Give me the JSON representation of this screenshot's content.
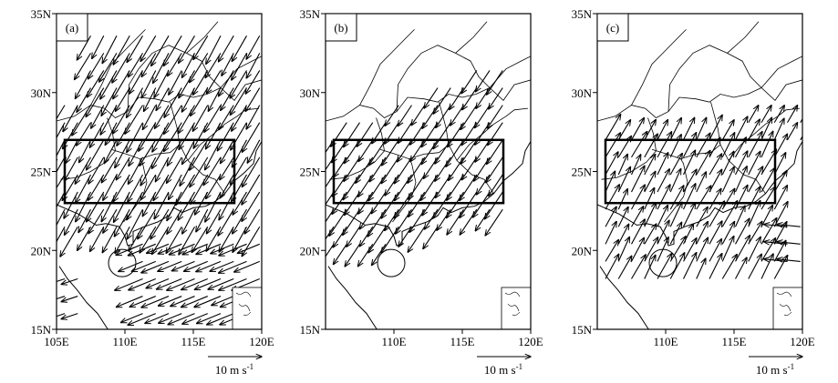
{
  "panels": [
    {
      "label": "(a)",
      "lon_ticks": [
        {
          "value": 105,
          "label": "105E"
        },
        {
          "value": 110,
          "label": "110E"
        },
        {
          "value": 115,
          "label": "115E"
        },
        {
          "value": 120,
          "label": "120E"
        }
      ]
    },
    {
      "label": "(b)",
      "lon_ticks": [
        {
          "value": 110,
          "label": "110E"
        },
        {
          "value": 115,
          "label": "115E"
        },
        {
          "value": 120,
          "label": "120E"
        }
      ]
    },
    {
      "label": "(c)",
      "lon_ticks": [
        {
          "value": 110,
          "label": "110E"
        },
        {
          "value": 115,
          "label": "115E"
        },
        {
          "value": 120,
          "label": "120E"
        }
      ]
    }
  ],
  "lat_ticks": [
    {
      "value": 35,
      "label": "35N"
    },
    {
      "value": 30,
      "label": "30N"
    },
    {
      "value": 25,
      "label": "25N"
    },
    {
      "value": 20,
      "label": "20N"
    },
    {
      "value": 15,
      "label": "15N"
    }
  ],
  "reference_vector": {
    "label": "10 m s",
    "superscript": "-1"
  }
}
